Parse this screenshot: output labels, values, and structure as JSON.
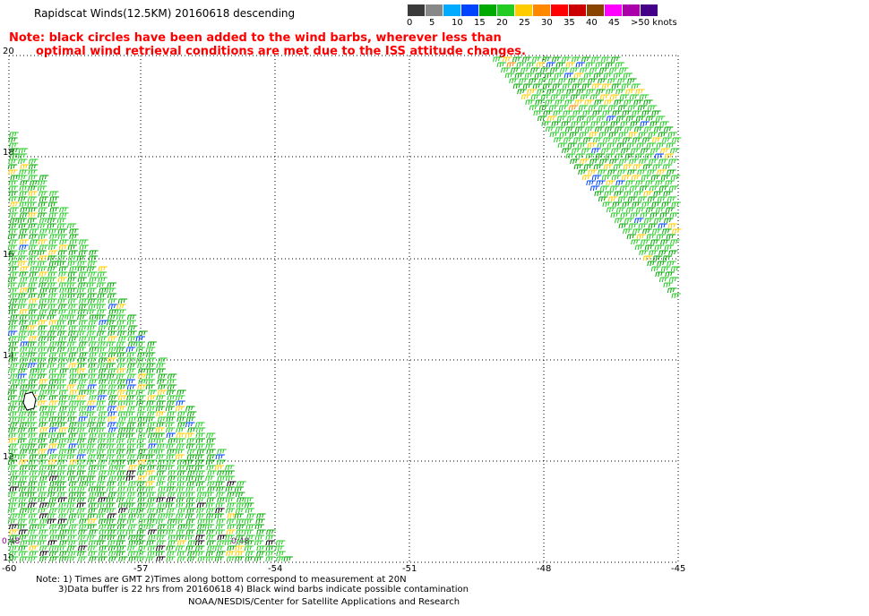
{
  "title": "Rapidscat Winds(12.5KM) 20160618 descending",
  "note_lines": [
    "Note: black circles have been added to the wind barbs, wherever less than",
    "optimal wind retrieval conditions are met due to the ISS attitude changes."
  ],
  "legend": {
    "colors": [
      "#3a3a3a",
      "#888888",
      "#00aaff",
      "#0044ff",
      "#00aa00",
      "#22cc22",
      "#ffcc00",
      "#ff8800",
      "#ff0000",
      "#cc0000",
      "#884400",
      "#ff00ff",
      "#aa00aa",
      "#440088"
    ],
    "labels": [
      "0",
      "5",
      "10",
      "15",
      "20",
      "25",
      "30",
      "35",
      "40",
      "45",
      ">50 knots"
    ]
  },
  "axes": {
    "lat_labels": [
      "20",
      "18",
      "16",
      "14",
      "12",
      "10"
    ],
    "lon_labels": [
      "-60",
      "-57",
      "-54",
      "-51",
      "-48",
      "-45"
    ]
  },
  "time_labels": [
    "0:48",
    "0:48"
  ],
  "footer": {
    "line1": "Note: 1) Times are GMT 2)Times along bottom correspond to measurement at 20N",
    "line2": "3)Data buffer is 22 hrs from 20160618 4) Black wind barbs indicate possible contamination",
    "line3": "NOAA/NESDIS/Center for Satellite Applications and Research"
  }
}
